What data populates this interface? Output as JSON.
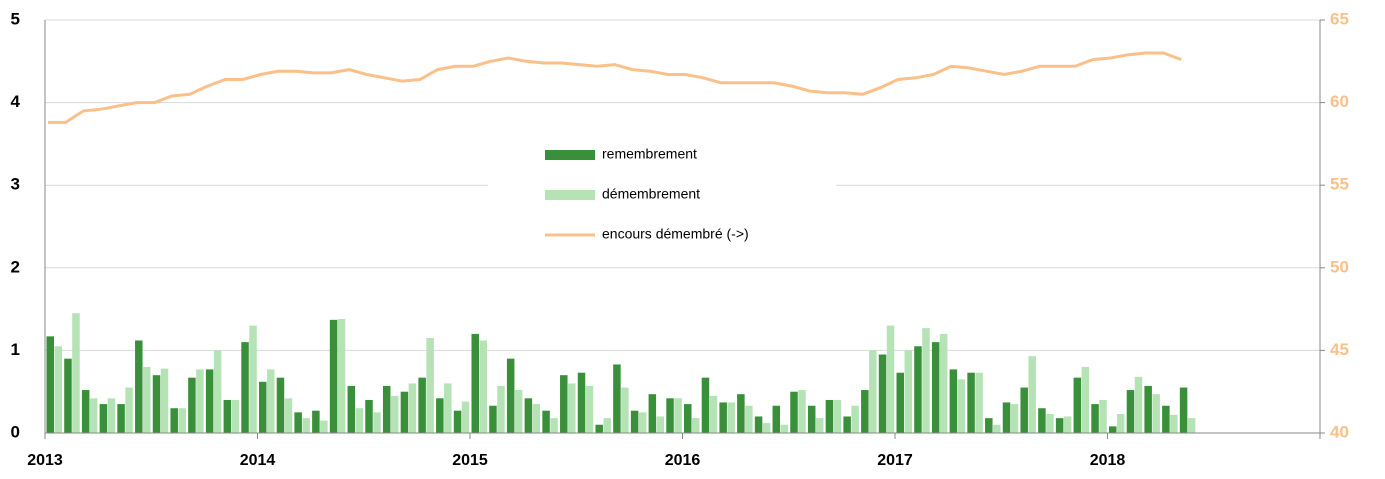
{
  "chart_data": {
    "type": "bar_line",
    "categories": [
      "2013",
      null,
      null,
      null,
      null,
      null,
      null,
      null,
      null,
      null,
      null,
      null,
      "2014",
      null,
      null,
      null,
      null,
      null,
      null,
      null,
      null,
      null,
      null,
      null,
      "2015",
      null,
      null,
      null,
      null,
      null,
      null,
      null,
      null,
      null,
      null,
      null,
      "2016",
      null,
      null,
      null,
      null,
      null,
      null,
      null,
      null,
      null,
      null,
      null,
      "2017",
      null,
      null,
      null,
      null,
      null,
      null,
      null,
      null,
      null,
      null,
      null,
      "2018",
      null,
      null,
      null,
      null,
      null,
      null,
      null,
      null,
      null,
      null,
      null
    ],
    "series": [
      {
        "name": "remembrement",
        "color": "#3a8f3a",
        "type": "bar",
        "values": [
          1.17,
          0.9,
          0.52,
          0.35,
          0.35,
          1.12,
          0.7,
          0.3,
          0.67,
          0.77,
          0.4,
          1.1,
          0.62,
          0.67,
          0.25,
          0.27,
          1.37,
          0.57,
          0.4,
          0.57,
          0.5,
          0.67,
          0.42,
          0.27,
          1.2,
          0.33,
          0.9,
          0.42,
          0.27,
          0.7,
          0.73,
          0.1,
          0.83,
          0.27,
          0.47,
          0.42,
          0.35,
          0.67,
          0.37,
          0.47,
          0.2,
          0.33,
          0.5,
          0.33,
          0.4,
          0.2,
          0.52,
          0.95,
          0.73,
          1.05,
          1.1,
          0.77,
          0.73,
          0.18,
          0.37,
          0.55,
          0.3,
          0.18,
          0.67,
          0.35,
          0.08,
          0.52,
          0.57,
          0.33,
          0.55,
          null,
          null,
          null,
          null,
          null,
          null,
          null
        ]
      },
      {
        "name": "démembrement",
        "color": "#b5e3b5",
        "type": "bar",
        "values": [
          1.05,
          1.45,
          0.42,
          0.42,
          0.55,
          0.8,
          0.78,
          0.3,
          0.77,
          1.0,
          0.4,
          1.3,
          0.77,
          0.42,
          0.18,
          0.15,
          1.38,
          0.3,
          0.25,
          0.45,
          0.6,
          1.15,
          0.6,
          0.38,
          1.12,
          0.57,
          0.52,
          0.35,
          0.18,
          0.6,
          0.57,
          0.18,
          0.55,
          0.25,
          0.2,
          0.42,
          0.18,
          0.45,
          0.37,
          0.33,
          0.12,
          0.1,
          0.52,
          0.18,
          0.4,
          0.33,
          1.0,
          1.3,
          1.0,
          1.27,
          1.2,
          0.65,
          0.73,
          0.1,
          0.35,
          0.93,
          0.23,
          0.2,
          0.8,
          0.4,
          0.23,
          0.68,
          0.47,
          0.22,
          0.18,
          null,
          null,
          null,
          null,
          null,
          null,
          null
        ]
      },
      {
        "name": "encours démembré (->)",
        "color": "#f9c08a",
        "type": "line",
        "axis": "y2",
        "values": [
          58.8,
          58.8,
          59.5,
          59.6,
          59.8,
          60.0,
          60.0,
          60.4,
          60.5,
          61.0,
          61.4,
          61.4,
          61.7,
          61.9,
          61.9,
          61.8,
          61.8,
          62.0,
          61.7,
          61.5,
          61.3,
          61.4,
          62.0,
          62.2,
          62.2,
          62.5,
          62.7,
          62.5,
          62.4,
          62.4,
          62.3,
          62.2,
          62.3,
          62.0,
          61.9,
          61.7,
          61.7,
          61.5,
          61.2,
          61.2,
          61.2,
          61.2,
          61.0,
          60.7,
          60.6,
          60.6,
          60.5,
          60.9,
          61.4,
          61.5,
          61.7,
          62.2,
          62.1,
          61.9,
          61.7,
          61.9,
          62.2,
          62.2,
          62.2,
          62.6,
          62.7,
          62.9,
          63.0,
          63.0,
          62.6,
          null,
          null,
          null,
          null,
          null,
          null,
          null
        ]
      }
    ],
    "ylim": [
      0,
      5
    ],
    "yticks": [
      0,
      1,
      2,
      3,
      4,
      5
    ],
    "y2lim": [
      40,
      65
    ],
    "y2ticks": [
      40,
      45,
      50,
      55,
      60,
      65
    ],
    "grid": true,
    "legend": "center"
  }
}
